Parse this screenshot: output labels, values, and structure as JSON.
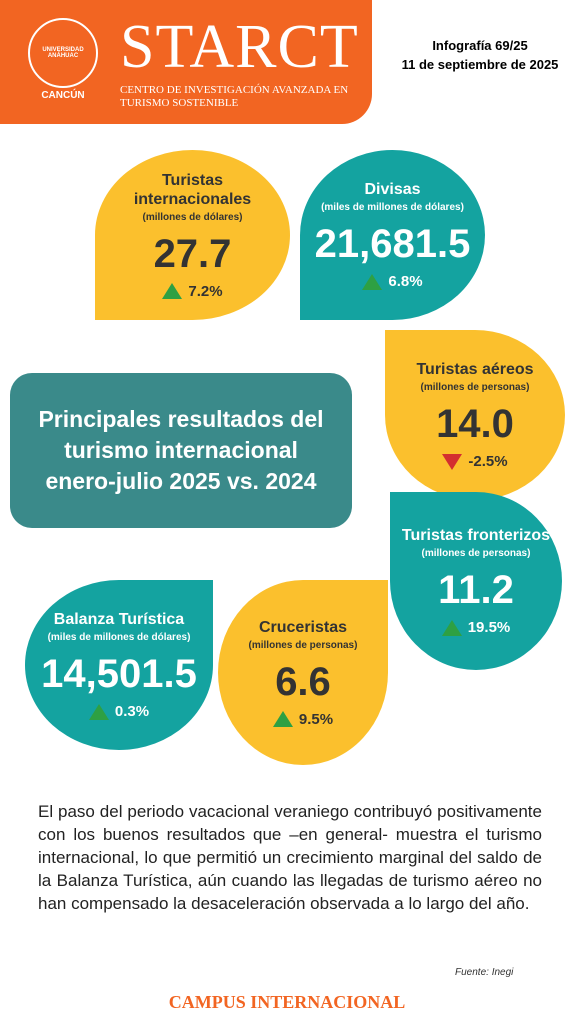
{
  "header": {
    "logo_text": "UNIVERSIDAD ANÁHUAC",
    "logo_city": "CANCÚN",
    "brand": "STARCT",
    "brand_subtitle": "CENTRO DE INVESTIGACIÓN AVANZADA EN TURISMO SOSTENIBLE",
    "infographic": "Infografía 69/25",
    "date": "11 de septiembre de 2025"
  },
  "title": "Principales resultados del turismo internacional enero-julio 2025 vs. 2024",
  "cards": [
    {
      "label": "Turistas internacionales",
      "unit": "(millones de dólares)",
      "value": "27.7",
      "change": "7.2%",
      "trend": "up",
      "color": "yellow"
    },
    {
      "label": "Divisas",
      "unit": "(miles de millones de dólares)",
      "value": "21,681.5",
      "change": "6.8%",
      "trend": "up",
      "color": "teal"
    },
    {
      "label": "Turistas aéreos",
      "unit": "(millones de personas)",
      "value": "14.0",
      "change": "-2.5%",
      "trend": "down",
      "color": "yellow"
    },
    {
      "label": "Turistas fronterizos",
      "unit": "(millones de personas)",
      "value": "11.2",
      "change": "19.5%",
      "trend": "up",
      "color": "teal"
    },
    {
      "label": "Balanza Turística",
      "unit": "(miles de millones de dólares)",
      "value": "14,501.5",
      "change": "0.3%",
      "trend": "up",
      "color": "teal"
    },
    {
      "label": "Cruceristas",
      "unit": "(millones de personas)",
      "value": "6.6",
      "change": "9.5%",
      "trend": "up",
      "color": "yellow"
    }
  ],
  "paragraph": "El paso del periodo vacacional veraniego contribuyó positivamente con los buenos resultados que –en general- muestra el turismo internacional, lo que permitió un crecimiento marginal del saldo de la Balanza Turística, aún cuando las llegadas de turismo aéreo no han compensado la desaceleración observada a lo largo del año.",
  "source": "Fuente: Inegi",
  "footer": "CAMPUS INTERNACIONAL"
}
